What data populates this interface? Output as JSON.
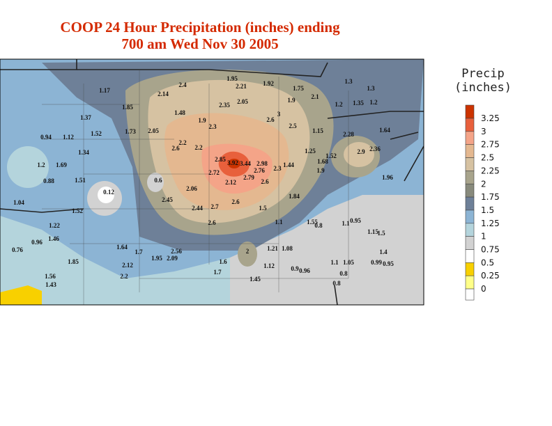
{
  "header": {
    "title": [
      "COOP 24 Hour Precipitation (inches) ending",
      "700 am Wed Nov 30 2005"
    ]
  },
  "legend": {
    "title": [
      "Precip",
      "(inches)"
    ],
    "levels": [
      3.25,
      3,
      2.75,
      2.5,
      2.25,
      2,
      1.75,
      1.5,
      1.25,
      1,
      0.75,
      0.5,
      0.25,
      0
    ],
    "colors": [
      "#cc3300",
      "#e8603c",
      "#f4a488",
      "#e4b890",
      "#d6c2a2",
      "#a8a48c",
      "#888a7c",
      "#6e8098",
      "#8cb4d4",
      "#b4d4dc",
      "#d2d2d2",
      "#ffffff",
      "#f8d000",
      "#ffff88",
      "#ffffff"
    ]
  },
  "stations": {
    "values": [
      1.17,
      2.4,
      2.14,
      1.95,
      2.21,
      1.92,
      1.75,
      1.3,
      1.3,
      1.85,
      2.35,
      2.05,
      3,
      1.9,
      2.1,
      1.2,
      1.35,
      1.2,
      1.37,
      1.52,
      1.73,
      2.05,
      1.48,
      1.9,
      2.3,
      2.6,
      2.5,
      1.15,
      2.28,
      1.64,
      0.94,
      1.12,
      1.34,
      2.2,
      2.6,
      2.2,
      2.85,
      3.92,
      3.44,
      2.98,
      2.76,
      2.72,
      2.12,
      2.79,
      2.6,
      2.3,
      1.44,
      1.25,
      1.52,
      1.68,
      1.9,
      2.9,
      2.36,
      1.96,
      1.04,
      1.2,
      1.69,
      0.88,
      0.12,
      1.51,
      0.6,
      2.06,
      2.45,
      2.44,
      2.7,
      2.6,
      2.6,
      1.5,
      1.84,
      1.55,
      1.1,
      0.8,
      1.1,
      0.95,
      1.15,
      1.5,
      1.22,
      1.46,
      0.96,
      0.76,
      1.64,
      1.7,
      2.56,
      2.09,
      1.95,
      2.12,
      2.2,
      1.85,
      1.56,
      1.43,
      2,
      1.6,
      1.7,
      1.12,
      1.45,
      1.21,
      1.08,
      0.9,
      0.96,
      1.1,
      1.05,
      0.8,
      0.8,
      1.4,
      0.99,
      0.95,
      1.52
    ]
  }
}
